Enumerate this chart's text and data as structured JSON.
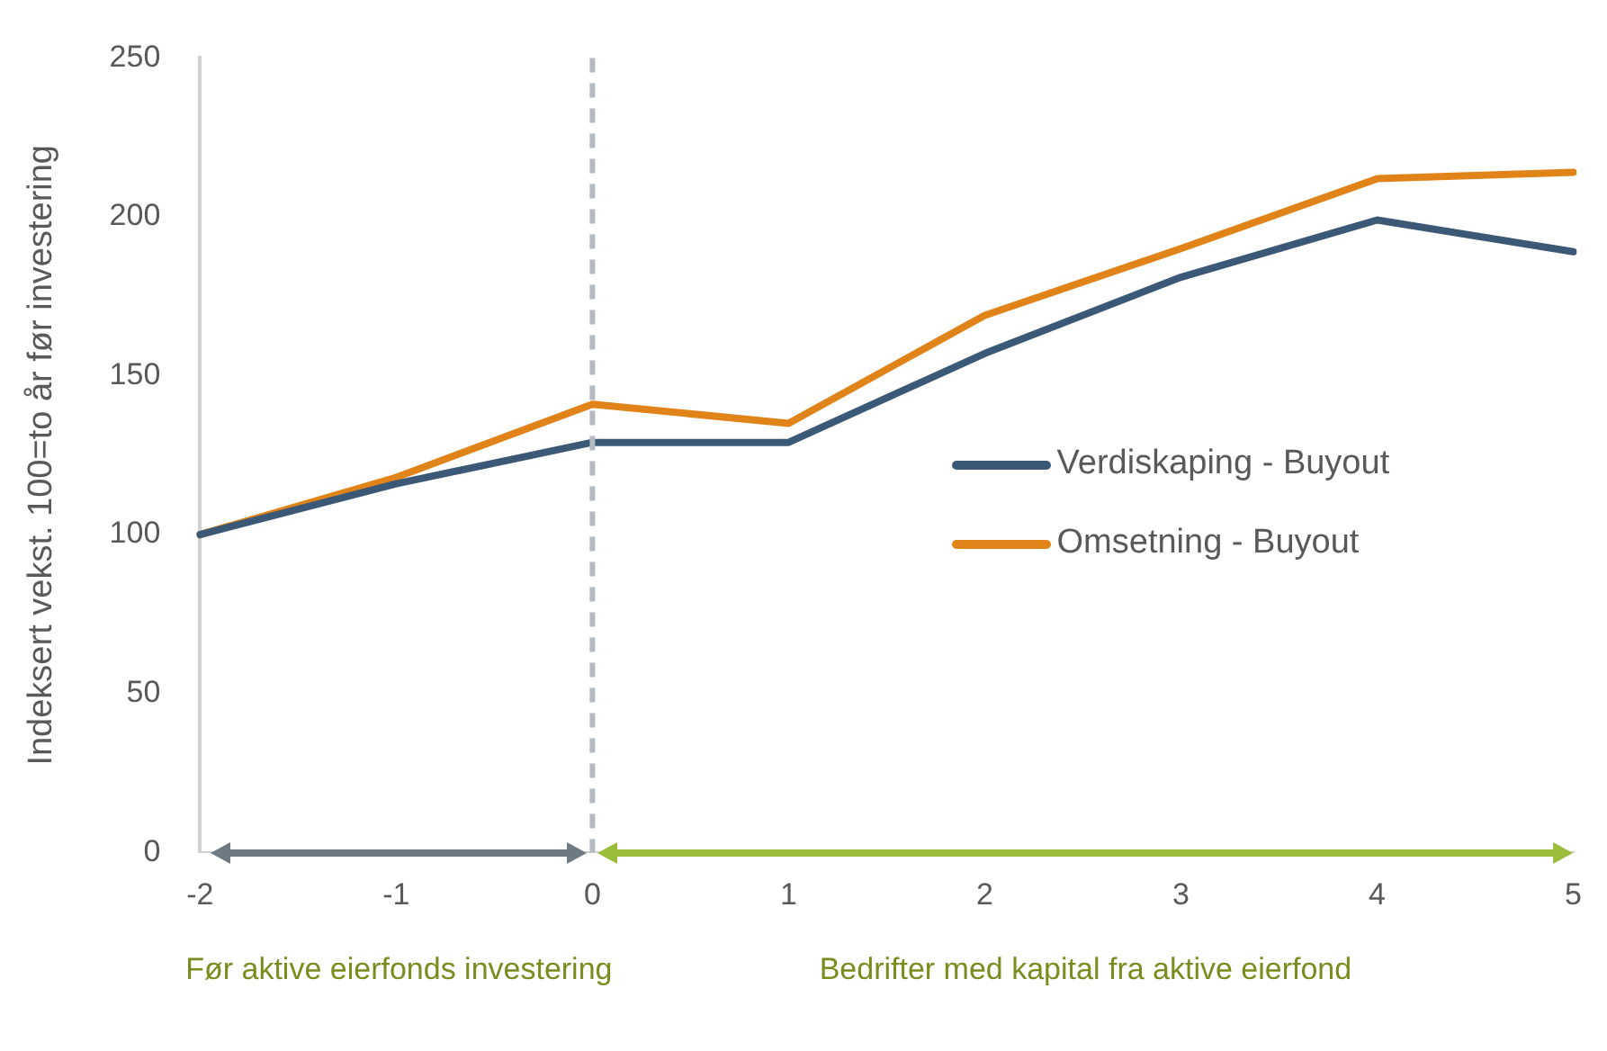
{
  "chart_data": {
    "type": "line",
    "ylabel": "Indeksert vekst. 100=to år før investering",
    "categories": [
      "-2",
      "-1",
      "0",
      "1",
      "2",
      "3",
      "4",
      "5"
    ],
    "series": [
      {
        "name": "Verdiskaping - Buyout",
        "color": "#3b5877",
        "values": [
          100,
          116,
          129,
          129,
          157,
          181,
          199,
          189
        ]
      },
      {
        "name": "Omsetning - Buyout",
        "color": "#e08319",
        "values": [
          100,
          118,
          141,
          135,
          169,
          190,
          212,
          214
        ]
      }
    ],
    "ylim": [
      0,
      250
    ],
    "yticks": [
      0,
      50,
      100,
      150,
      200,
      250
    ],
    "ref_lines": [
      {
        "axis": "x",
        "value": "0",
        "color": "#b4bac0",
        "line_style": "dashed"
      }
    ],
    "annotations": [
      "Før aktive eierfonds investering",
      "Bedrifter med kapital fra aktive eierfond"
    ],
    "grid": false,
    "legend": "right",
    "marker": "none",
    "line_style": "solid"
  }
}
